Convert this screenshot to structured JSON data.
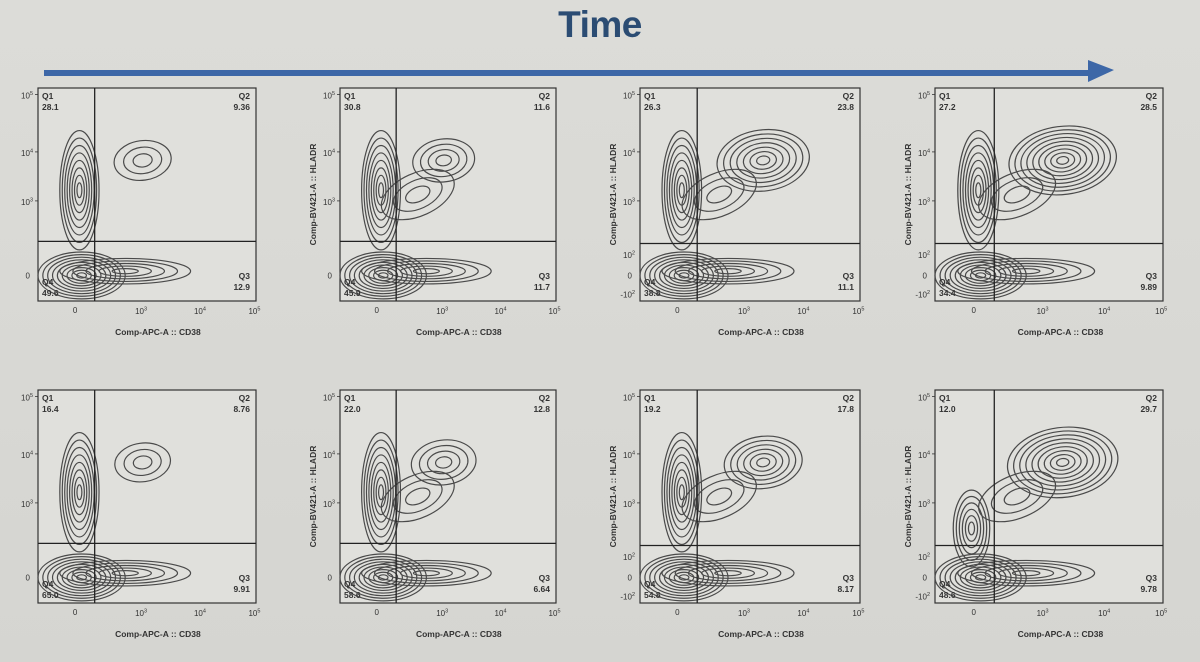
{
  "header": {
    "title": "Time",
    "title_color": "#2b4c73",
    "arrow_color": "#3d67a7"
  },
  "chart_data": {
    "type": "contour",
    "xlabel": "Comp-APC-A :: CD38",
    "ylabel": "Comp-BV421-A :: HLADR",
    "tick_label_base": "10",
    "y_tick_exponents": [
      "5",
      "4",
      "3",
      "2"
    ],
    "x_tick_exponents": [
      "3",
      "4",
      "5"
    ],
    "zero_label": "0",
    "neg_label": "-10",
    "quadrant_labels": [
      "Q1",
      "Q2",
      "Q3",
      "Q4"
    ],
    "panels": [
      {
        "row": 1,
        "col": 1,
        "show_ylabel": false,
        "show_ylog2": false,
        "Q1": "28.1",
        "Q2": "9.36",
        "Q3": "12.9",
        "Q4": "49.6"
      },
      {
        "row": 1,
        "col": 2,
        "show_ylabel": true,
        "show_ylog2": false,
        "Q1": "30.8",
        "Q2": "11.6",
        "Q3": "11.7",
        "Q4": "45.9"
      },
      {
        "row": 1,
        "col": 3,
        "show_ylabel": true,
        "show_ylog2": true,
        "Q1": "26.3",
        "Q2": "23.8",
        "Q3": "11.1",
        "Q4": "38.8"
      },
      {
        "row": 1,
        "col": 4,
        "show_ylabel": true,
        "show_ylog2": true,
        "Q1": "27.2",
        "Q2": "28.5",
        "Q3": "9.89",
        "Q4": "34.4"
      },
      {
        "row": 2,
        "col": 1,
        "show_ylabel": false,
        "show_ylog2": false,
        "Q1": "16.4",
        "Q2": "8.76",
        "Q3": "9.91",
        "Q4": "65.0"
      },
      {
        "row": 2,
        "col": 2,
        "show_ylabel": true,
        "show_ylog2": false,
        "Q1": "22.0",
        "Q2": "12.8",
        "Q3": "6.64",
        "Q4": "58.6"
      },
      {
        "row": 2,
        "col": 3,
        "show_ylabel": true,
        "show_ylog2": true,
        "Q1": "19.2",
        "Q2": "17.8",
        "Q3": "8.17",
        "Q4": "54.8"
      },
      {
        "row": 2,
        "col": 4,
        "show_ylabel": true,
        "show_ylog2": true,
        "Q1": "12.0",
        "Q2": "29.7",
        "Q3": "9.78",
        "Q4": "48.6"
      }
    ],
    "style": {
      "axis_color": "#333333",
      "contour_color": "#4a4a4a",
      "plot_bg": "#e0e0dc"
    }
  }
}
